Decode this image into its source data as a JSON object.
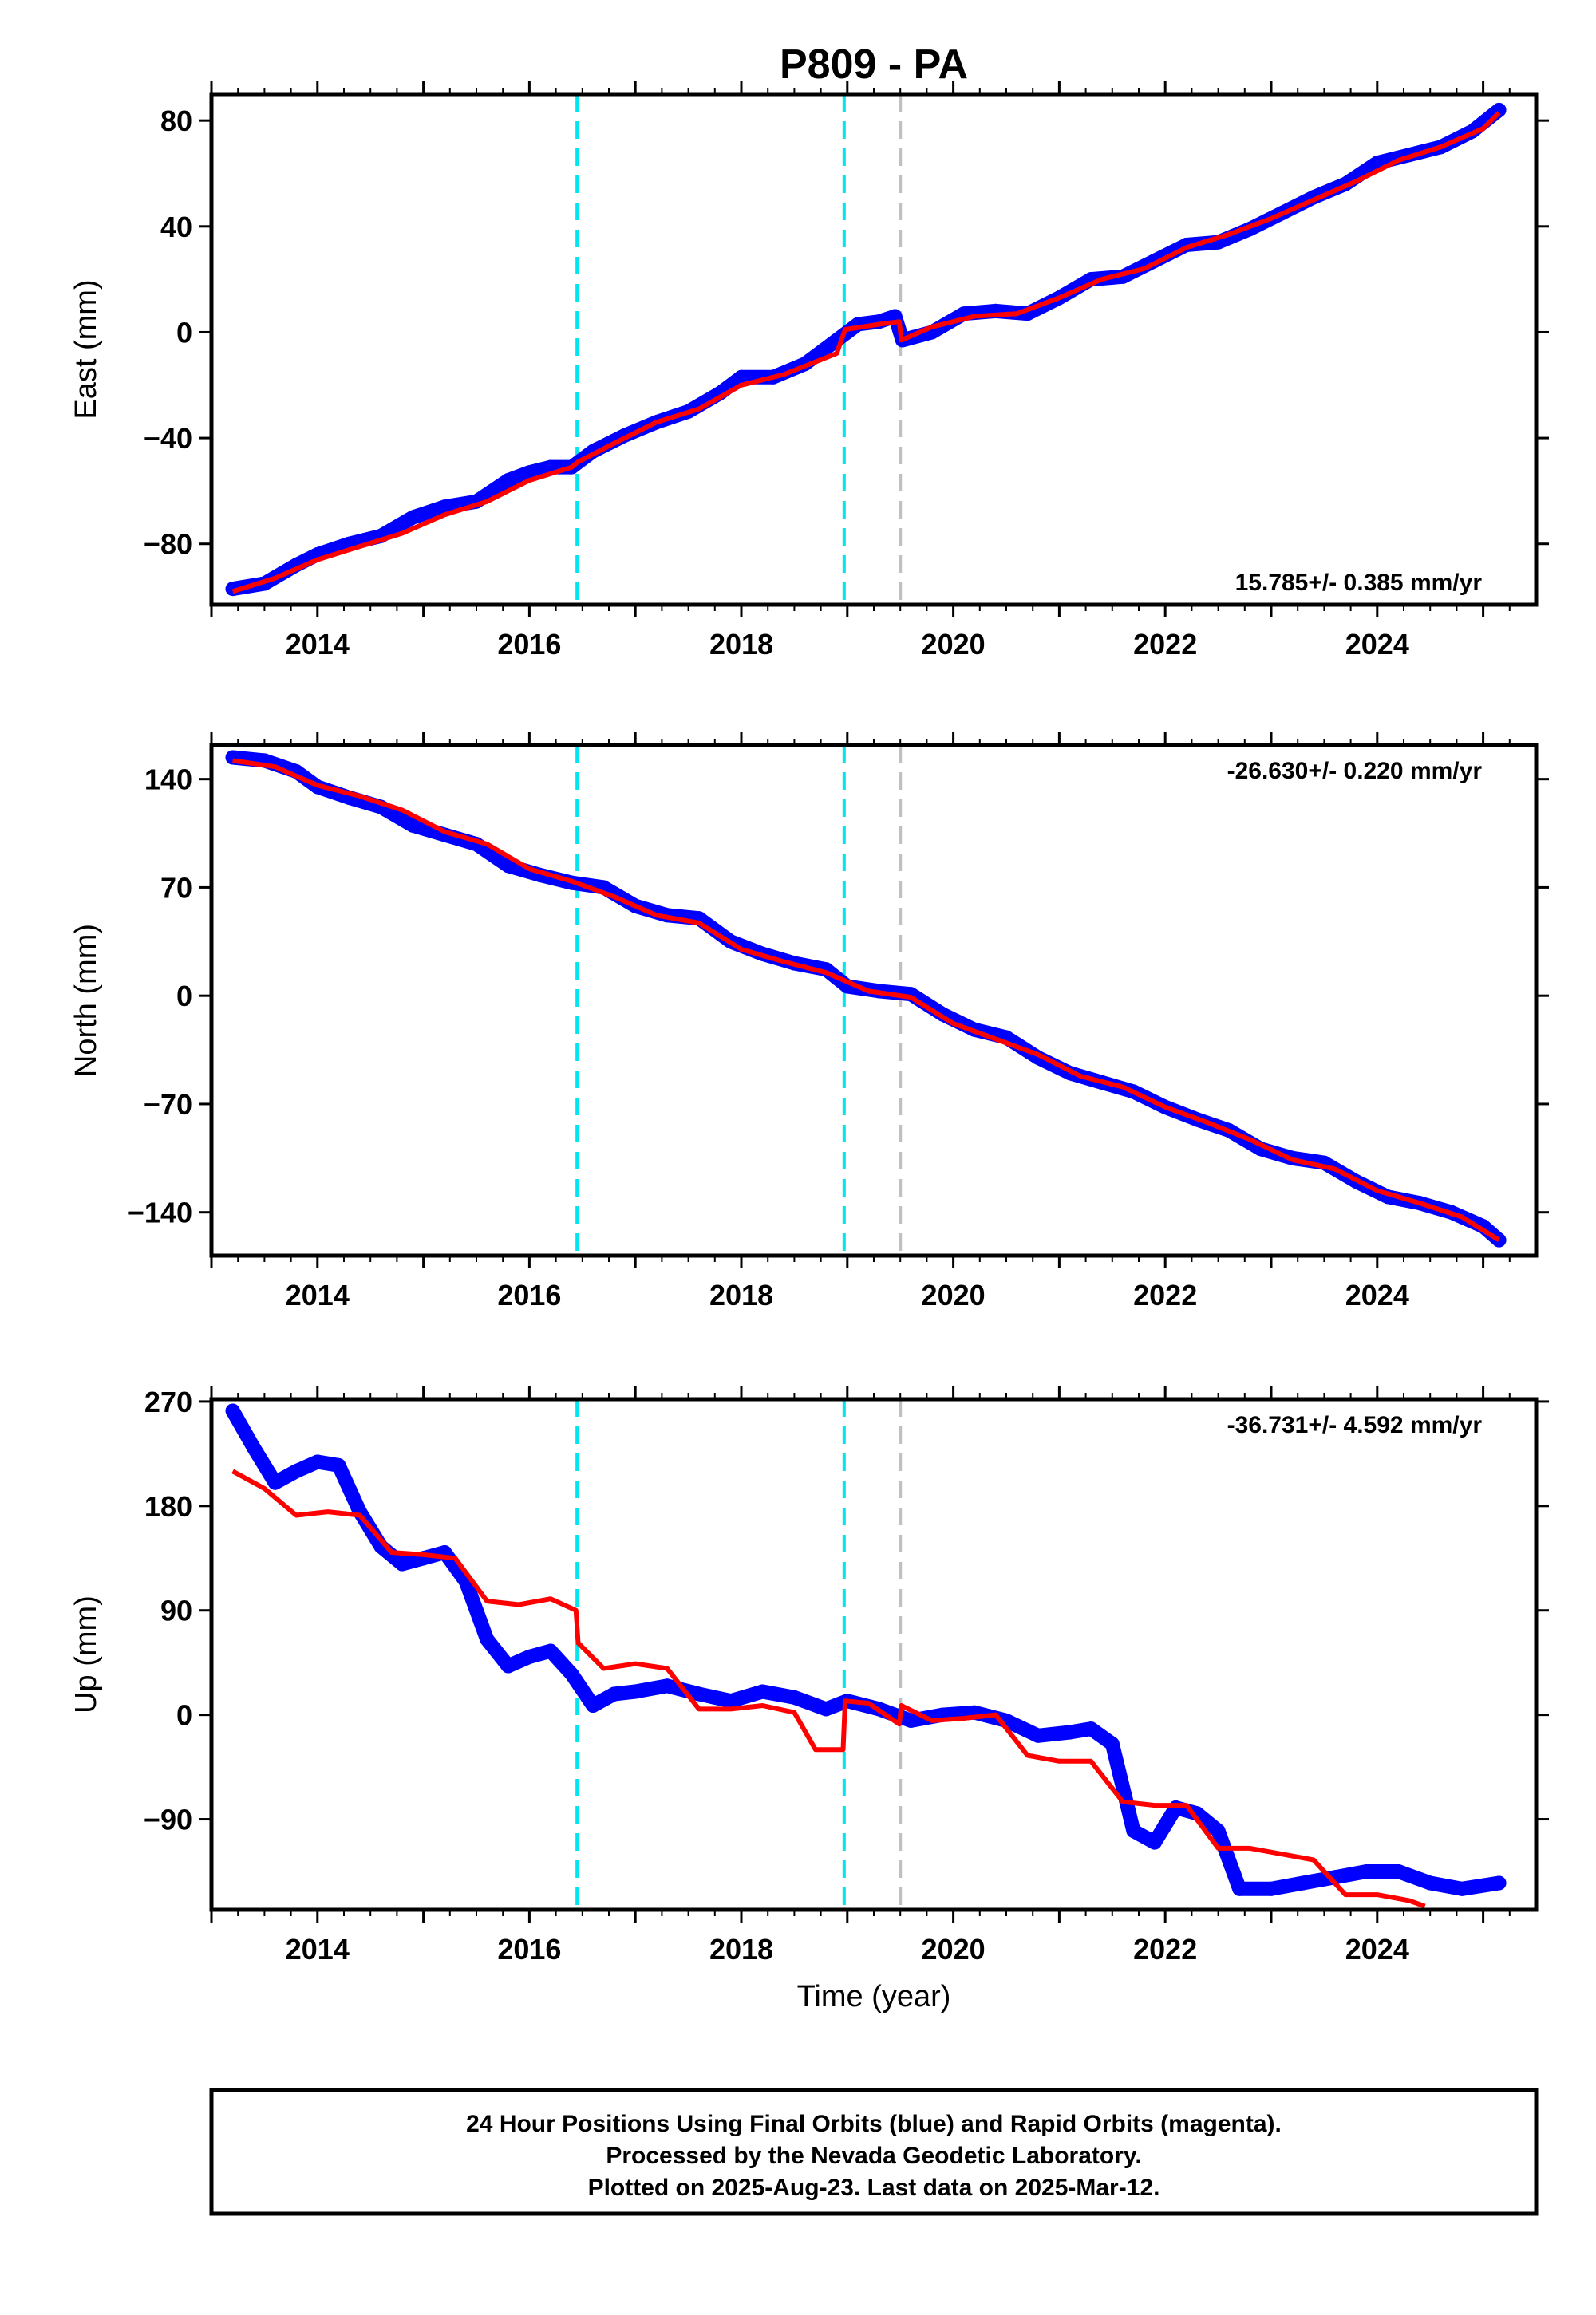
{
  "title": "P809 - PA",
  "xlabel": "Time (year)",
  "colors": {
    "data": "#0000ff",
    "model": "#ff0000",
    "break_equipment": "#00e5ee",
    "break_other": "#c0c0c0",
    "frame": "#000000"
  },
  "note_lines": [
    "24 Hour Positions Using Final Orbits (blue) and Rapid Orbits (magenta).",
    "Processed by the Nevada Geodetic Laboratory.",
    "Plotted on 2025-Aug-23. Last data on 2025-Mar-12."
  ],
  "chart_data": [
    {
      "type": "scatter",
      "panel": "east",
      "ylabel": "East (mm)",
      "rate_label": "15.785+/- 0.385 mm/yr",
      "rate_position": "bottom-right",
      "xlim": [
        2013.0,
        2025.5
      ],
      "ylim": [
        -103,
        90
      ],
      "x_ticks": [
        2014,
        2016,
        2018,
        2020,
        2022,
        2024
      ],
      "y_ticks": [
        -80,
        -40,
        0,
        40,
        80
      ],
      "y_tick_labels": [
        "−80",
        "−40",
        "0",
        "40",
        "80"
      ],
      "breaks": [
        {
          "x": 2016.45,
          "kind": "equipment"
        },
        {
          "x": 2018.97,
          "kind": "equipment"
        },
        {
          "x": 2019.5,
          "kind": "other"
        }
      ],
      "series": [
        {
          "name": "data",
          "x": [
            2013.2,
            2013.5,
            2013.8,
            2014.0,
            2014.3,
            2014.6,
            2014.9,
            2015.2,
            2015.5,
            2015.8,
            2016.0,
            2016.2,
            2016.4,
            2016.6,
            2016.9,
            2017.2,
            2017.5,
            2017.8,
            2018.0,
            2018.3,
            2018.6,
            2018.9,
            2019.1,
            2019.3,
            2019.45,
            2019.52,
            2019.8,
            2020.1,
            2020.4,
            2020.7,
            2021.0,
            2021.3,
            2021.6,
            2021.9,
            2022.2,
            2022.5,
            2022.8,
            2023.1,
            2023.4,
            2023.7,
            2024.0,
            2024.3,
            2024.6,
            2024.9,
            2025.15
          ],
          "y": [
            -97,
            -95,
            -88,
            -84,
            -80,
            -77,
            -70,
            -66,
            -64,
            -56,
            -53,
            -51,
            -51,
            -45,
            -39,
            -34,
            -30,
            -23,
            -17,
            -17,
            -12,
            -3,
            3,
            4,
            6,
            -3,
            0,
            7,
            8,
            7,
            13,
            20,
            21,
            27,
            33,
            34,
            39,
            45,
            51,
            56,
            64,
            67,
            70,
            76,
            84
          ]
        },
        {
          "name": "model",
          "x": [
            2013.2,
            2013.6,
            2014.0,
            2014.4,
            2014.8,
            2015.2,
            2015.6,
            2016.0,
            2016.4,
            2016.46,
            2016.8,
            2017.2,
            2017.6,
            2018.0,
            2018.4,
            2018.9,
            2018.98,
            2019.3,
            2019.49,
            2019.51,
            2019.8,
            2020.2,
            2020.6,
            2021.0,
            2021.4,
            2021.8,
            2022.2,
            2022.6,
            2023.0,
            2023.4,
            2023.8,
            2024.2,
            2024.6,
            2025.0,
            2025.15
          ],
          "y": [
            -98,
            -93,
            -86,
            -81,
            -76,
            -69,
            -64,
            -56,
            -51,
            -49,
            -42,
            -34,
            -29,
            -20,
            -16,
            -8,
            1,
            3,
            4,
            -3,
            2,
            6,
            7,
            13,
            20,
            24,
            32,
            37,
            43,
            50,
            57,
            65,
            70,
            77,
            83
          ]
        }
      ]
    },
    {
      "type": "scatter",
      "panel": "north",
      "ylabel": "North (mm)",
      "rate_label": "-26.630+/- 0.220 mm/yr",
      "rate_position": "top-right",
      "xlim": [
        2013.0,
        2025.5
      ],
      "ylim": [
        -168,
        162
      ],
      "x_ticks": [
        2014,
        2016,
        2018,
        2020,
        2022,
        2024
      ],
      "y_ticks": [
        -140,
        -70,
        0,
        70,
        140
      ],
      "y_tick_labels": [
        "−140",
        "−70",
        "0",
        "70",
        "140"
      ],
      "breaks": [
        {
          "x": 2016.45,
          "kind": "equipment"
        },
        {
          "x": 2018.97,
          "kind": "equipment"
        },
        {
          "x": 2019.5,
          "kind": "other"
        }
      ],
      "series": [
        {
          "name": "data",
          "x": [
            2013.2,
            2013.5,
            2013.8,
            2014.0,
            2014.3,
            2014.6,
            2014.9,
            2015.2,
            2015.5,
            2015.8,
            2016.1,
            2016.4,
            2016.7,
            2017.0,
            2017.3,
            2017.6,
            2017.9,
            2018.2,
            2018.5,
            2018.8,
            2019.0,
            2019.3,
            2019.6,
            2019.9,
            2020.2,
            2020.5,
            2020.8,
            2021.1,
            2021.4,
            2021.7,
            2022.0,
            2022.3,
            2022.6,
            2022.9,
            2023.2,
            2023.5,
            2023.8,
            2024.1,
            2024.4,
            2024.7,
            2025.0,
            2025.15
          ],
          "y": [
            154,
            152,
            145,
            135,
            128,
            122,
            110,
            104,
            98,
            84,
            78,
            73,
            70,
            58,
            52,
            50,
            35,
            27,
            21,
            17,
            6,
            3,
            1,
            -12,
            -22,
            -27,
            -40,
            -50,
            -56,
            -62,
            -72,
            -80,
            -87,
            -99,
            -105,
            -108,
            -120,
            -130,
            -134,
            -140,
            -149,
            -158
          ]
        },
        {
          "name": "model",
          "x": [
            2013.2,
            2013.6,
            2014.0,
            2014.4,
            2014.8,
            2015.2,
            2015.6,
            2016.0,
            2016.4,
            2016.8,
            2017.2,
            2017.6,
            2018.0,
            2018.4,
            2018.8,
            2019.2,
            2019.6,
            2020.0,
            2020.4,
            2020.8,
            2021.2,
            2021.6,
            2022.0,
            2022.4,
            2022.8,
            2023.2,
            2023.6,
            2024.0,
            2024.4,
            2024.8,
            2025.15
          ],
          "y": [
            152,
            148,
            136,
            129,
            120,
            106,
            98,
            82,
            74,
            64,
            52,
            47,
            30,
            22,
            15,
            3,
            -1,
            -18,
            -28,
            -38,
            -52,
            -59,
            -72,
            -82,
            -93,
            -106,
            -112,
            -126,
            -134,
            -143,
            -158
          ]
        }
      ]
    },
    {
      "type": "scatter",
      "panel": "up",
      "ylabel": "Up (mm)",
      "rate_label": "-36.731+/- 4.592 mm/yr",
      "rate_position": "top-right",
      "xlim": [
        2013.0,
        2025.5
      ],
      "ylim": [
        -168,
        272
      ],
      "x_ticks": [
        2014,
        2016,
        2018,
        2020,
        2022,
        2024
      ],
      "y_ticks": [
        -90,
        0,
        90,
        180,
        270
      ],
      "y_tick_labels": [
        "−90",
        "0",
        "90",
        "180",
        "270"
      ],
      "breaks": [
        {
          "x": 2016.45,
          "kind": "equipment"
        },
        {
          "x": 2018.97,
          "kind": "equipment"
        },
        {
          "x": 2019.5,
          "kind": "other"
        }
      ],
      "series": [
        {
          "name": "data",
          "x": [
            2013.2,
            2013.4,
            2013.6,
            2013.8,
            2014.0,
            2014.2,
            2014.4,
            2014.6,
            2014.8,
            2015.0,
            2015.2,
            2015.4,
            2015.6,
            2015.8,
            2016.0,
            2016.2,
            2016.4,
            2016.6,
            2016.8,
            2017.0,
            2017.3,
            2017.6,
            2017.9,
            2018.2,
            2018.5,
            2018.8,
            2019.0,
            2019.3,
            2019.6,
            2019.9,
            2020.2,
            2020.5,
            2020.8,
            2021.1,
            2021.3,
            2021.5,
            2021.7,
            2021.9,
            2022.1,
            2022.3,
            2022.5,
            2022.7,
            2023.0,
            2023.3,
            2023.6,
            2023.9,
            2024.2,
            2024.5,
            2024.8,
            2025.15
          ],
          "y": [
            262,
            230,
            200,
            210,
            218,
            215,
            175,
            145,
            130,
            135,
            140,
            115,
            65,
            42,
            50,
            55,
            35,
            8,
            18,
            20,
            25,
            18,
            12,
            20,
            15,
            5,
            12,
            5,
            -5,
            0,
            2,
            -5,
            -18,
            -15,
            -12,
            -25,
            -100,
            -110,
            -80,
            -85,
            -100,
            -150,
            -150,
            -145,
            -140,
            -135,
            -135,
            -145,
            -150,
            -145
          ]
        },
        {
          "name": "model",
          "x": [
            2013.2,
            2013.5,
            2013.8,
            2014.1,
            2014.4,
            2014.7,
            2015.0,
            2015.3,
            2015.6,
            2015.9,
            2016.2,
            2016.44,
            2016.46,
            2016.7,
            2017.0,
            2017.3,
            2017.6,
            2017.9,
            2018.2,
            2018.5,
            2018.7,
            2018.96,
            2018.98,
            2019.2,
            2019.49,
            2019.51,
            2019.8,
            2020.1,
            2020.4,
            2020.7,
            2021.0,
            2021.3,
            2021.6,
            2021.9,
            2022.2,
            2022.5,
            2022.8,
            2023.1,
            2023.4,
            2023.7,
            2024.0,
            2024.3,
            2024.45
          ],
          "y": [
            210,
            195,
            172,
            175,
            172,
            140,
            138,
            135,
            98,
            95,
            100,
            90,
            62,
            40,
            44,
            40,
            5,
            5,
            8,
            2,
            -30,
            -30,
            12,
            10,
            -8,
            8,
            -5,
            -3,
            0,
            -35,
            -40,
            -40,
            -75,
            -78,
            -78,
            -115,
            -115,
            -120,
            -125,
            -155,
            -155,
            -160,
            -165
          ]
        }
      ]
    }
  ]
}
